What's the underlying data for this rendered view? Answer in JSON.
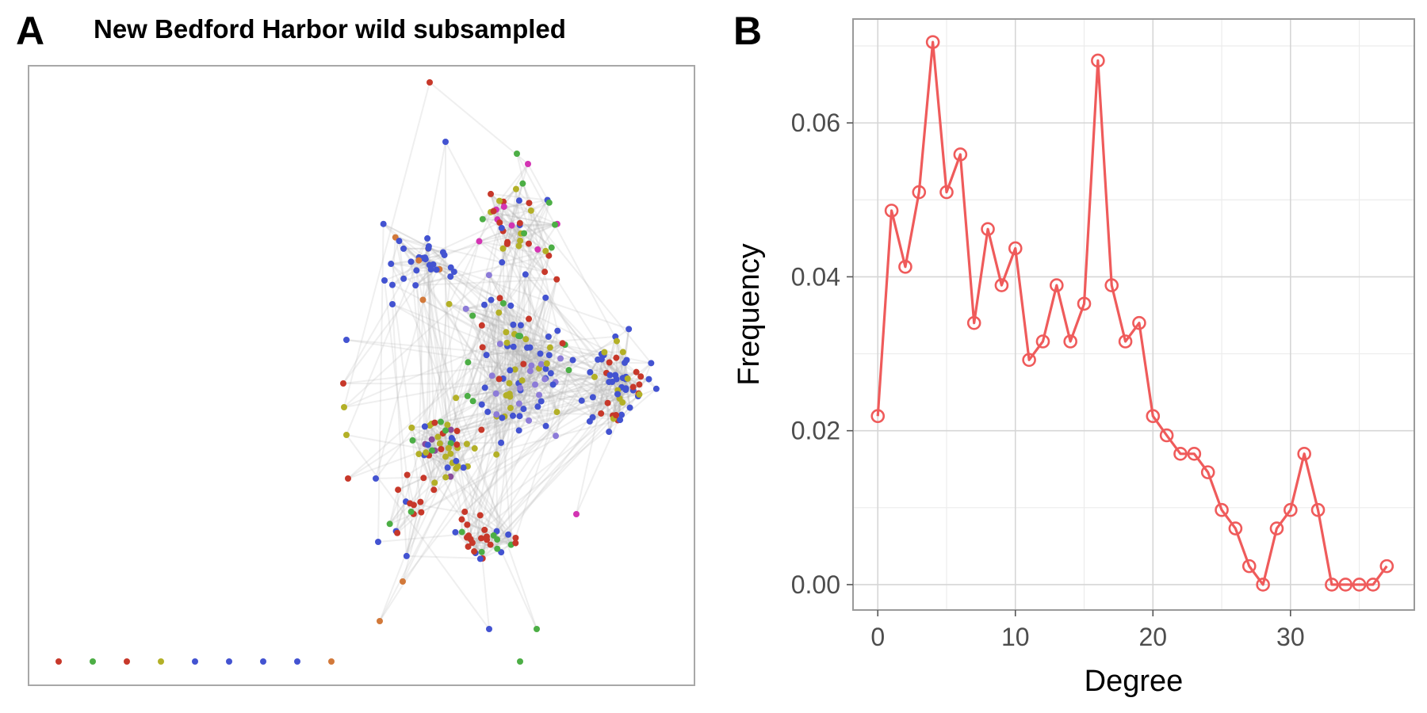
{
  "panel_a": {
    "letter": "A",
    "title": "New Bedford Harbor wild subsampled",
    "colors": {
      "blue": "#4353d1",
      "red": "#c7382a",
      "green": "#4cae45",
      "olive": "#b3b027",
      "orange": "#d2793a",
      "purple": "#8a4c9c",
      "magenta": "#d334b3",
      "lavender": "#8c7bd8",
      "gray": "#6b6b6b",
      "edge": "#b4b4b4"
    },
    "isolated_nodes": [
      "red",
      "green",
      "red",
      "olive",
      "blue",
      "blue",
      "blue",
      "blue",
      "orange"
    ]
  },
  "panel_b": {
    "letter": "B",
    "line_color": "#ef5b5b"
  },
  "chart_data": {
    "type": "line",
    "title": "",
    "xlabel": "Degree",
    "ylabel": "Frequency",
    "xlim": [
      -1.8,
      39
    ],
    "ylim": [
      -0.0033,
      0.0735
    ],
    "x_ticks": [
      0,
      10,
      20,
      30
    ],
    "x_tick_labels": [
      "0",
      "10",
      "20",
      "30"
    ],
    "y_ticks": [
      0.0,
      0.02,
      0.04,
      0.06
    ],
    "y_tick_labels": [
      "0.00",
      "0.02",
      "0.04",
      "0.06"
    ],
    "grid": true,
    "markers": "open-circle",
    "x": [
      0,
      1,
      2,
      3,
      4,
      5,
      6,
      7,
      8,
      9,
      10,
      11,
      12,
      13,
      14,
      15,
      16,
      17,
      18,
      19,
      20,
      21,
      22,
      23,
      24,
      25,
      26,
      27,
      28,
      29,
      30,
      31,
      32,
      33,
      34,
      35,
      36,
      37
    ],
    "y": [
      0.0219,
      0.0486,
      0.0413,
      0.051,
      0.0705,
      0.051,
      0.0559,
      0.034,
      0.0462,
      0.0389,
      0.0437,
      0.0292,
      0.0316,
      0.0389,
      0.0316,
      0.0365,
      0.0681,
      0.0389,
      0.0316,
      0.034,
      0.0219,
      0.0194,
      0.017,
      0.017,
      0.0146,
      0.0097,
      0.0073,
      0.0024,
      0.0,
      0.0073,
      0.0097,
      0.017,
      0.0097,
      0.0,
      0.0,
      0.0,
      0.0,
      0.0024
    ]
  }
}
